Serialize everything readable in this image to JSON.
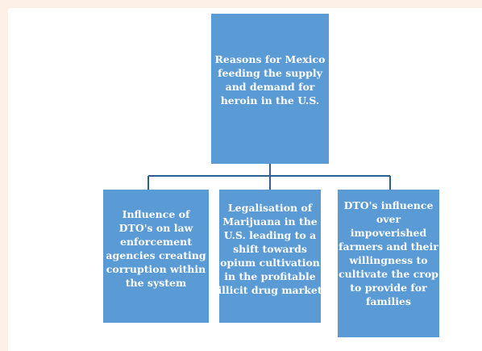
{
  "root": {
    "lines": [
      "Reasons for Mexico",
      "feeding the supply",
      "and demand for",
      "heroin in the U.S."
    ]
  },
  "children": [
    {
      "lines": [
        "Influence of",
        "DTO's on law",
        "enforcement",
        "agencies creating",
        "corruption within",
        "the system"
      ]
    },
    {
      "lines": [
        "Legalisation of",
        "Marijuana in the",
        "U.S. leading to a",
        "shift towards",
        "opium cultivation",
        "in the profitable",
        "illicit drug market"
      ]
    },
    {
      "lines": [
        "DTO's influence",
        "over",
        "impoverished",
        "farmers and their",
        "willingness to",
        "cultivate the crop",
        "to provide for",
        "families"
      ]
    }
  ]
}
